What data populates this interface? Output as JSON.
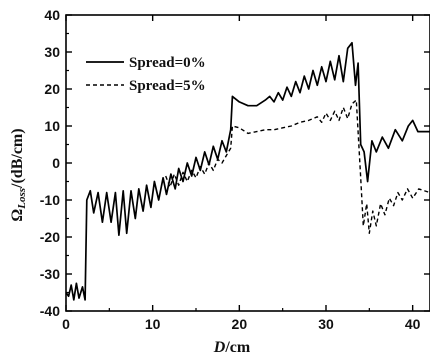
{
  "chart_data": {
    "type": "line",
    "xlabel_main": "D",
    "xlabel_unit": "/cm",
    "ylabel_main": "Ω",
    "ylabel_sub": "Loss",
    "ylabel_unit": "/(dB/cm)",
    "xlim": [
      0,
      42
    ],
    "ylim": [
      -40,
      40
    ],
    "x_ticks": [
      0,
      10,
      20,
      30,
      40
    ],
    "y_ticks": [
      -40,
      -30,
      -20,
      -10,
      0,
      10,
      20,
      30,
      40
    ],
    "grid": false,
    "legend_position": "top-left",
    "series": [
      {
        "name": "Spread=0%",
        "style": "solid",
        "color": "#000000",
        "points": [
          [
            0.0,
            -35
          ],
          [
            0.3,
            -36
          ],
          [
            0.6,
            -33
          ],
          [
            0.9,
            -37
          ],
          [
            1.2,
            -32.5
          ],
          [
            1.5,
            -36.5
          ],
          [
            1.9,
            -33.5
          ],
          [
            2.2,
            -37
          ],
          [
            2.4,
            -10
          ],
          [
            2.8,
            -7.5
          ],
          [
            3.2,
            -13.5
          ],
          [
            3.7,
            -8
          ],
          [
            4.2,
            -16
          ],
          [
            4.7,
            -8
          ],
          [
            5.2,
            -16
          ],
          [
            5.7,
            -8
          ],
          [
            6.1,
            -19.5
          ],
          [
            6.6,
            -7.5
          ],
          [
            7.0,
            -19
          ],
          [
            7.5,
            -7.5
          ],
          [
            8.0,
            -15
          ],
          [
            8.4,
            -7
          ],
          [
            8.9,
            -13
          ],
          [
            9.3,
            -6
          ],
          [
            9.8,
            -12
          ],
          [
            10.2,
            -5
          ],
          [
            10.7,
            -10
          ],
          [
            11.2,
            -4
          ],
          [
            11.6,
            -8.5
          ],
          [
            12.1,
            -3
          ],
          [
            12.6,
            -7
          ],
          [
            13.0,
            -1.5
          ],
          [
            13.5,
            -5
          ],
          [
            14.0,
            0
          ],
          [
            14.5,
            -3.5
          ],
          [
            15.0,
            1.5
          ],
          [
            15.5,
            -2
          ],
          [
            16.0,
            3
          ],
          [
            16.5,
            -0.5
          ],
          [
            17.0,
            4.5
          ],
          [
            17.5,
            1
          ],
          [
            18.0,
            6
          ],
          [
            18.5,
            3
          ],
          [
            19.0,
            9
          ],
          [
            19.2,
            18
          ],
          [
            20.0,
            16.5
          ],
          [
            21.0,
            15.5
          ],
          [
            22.0,
            15.5
          ],
          [
            23.0,
            17
          ],
          [
            23.5,
            18
          ],
          [
            24.0,
            16.5
          ],
          [
            24.5,
            19
          ],
          [
            25.0,
            17
          ],
          [
            25.5,
            20.5
          ],
          [
            26.0,
            18
          ],
          [
            26.5,
            22
          ],
          [
            27.0,
            19
          ],
          [
            27.5,
            23.5
          ],
          [
            28.0,
            20
          ],
          [
            28.5,
            25
          ],
          [
            29.0,
            21
          ],
          [
            29.5,
            26
          ],
          [
            30.0,
            22
          ],
          [
            30.5,
            27.5
          ],
          [
            31.0,
            22.5
          ],
          [
            31.5,
            29
          ],
          [
            32.0,
            22
          ],
          [
            32.5,
            31
          ],
          [
            33.0,
            32.5
          ],
          [
            33.4,
            21
          ],
          [
            33.7,
            27
          ],
          [
            34.0,
            5
          ],
          [
            34.4,
            3
          ],
          [
            34.8,
            -5
          ],
          [
            35.3,
            6
          ],
          [
            35.8,
            3
          ],
          [
            36.5,
            7
          ],
          [
            37.2,
            4
          ],
          [
            38.0,
            9
          ],
          [
            38.8,
            6
          ],
          [
            39.5,
            10
          ],
          [
            40.0,
            11.5
          ],
          [
            40.6,
            8.5
          ],
          [
            42.0,
            8.5
          ]
        ]
      },
      {
        "name": "Spread=5%",
        "style": "dashed",
        "color": "#000000",
        "points": [
          [
            11.5,
            -3.5
          ],
          [
            12.0,
            -6.5
          ],
          [
            12.5,
            -3
          ],
          [
            13.0,
            -6
          ],
          [
            13.5,
            -2.5
          ],
          [
            14.0,
            -5
          ],
          [
            14.5,
            -2
          ],
          [
            15.0,
            -4
          ],
          [
            15.5,
            -1
          ],
          [
            16.0,
            -3
          ],
          [
            16.5,
            0
          ],
          [
            17.0,
            -2
          ],
          [
            17.5,
            1
          ],
          [
            18.0,
            0
          ],
          [
            18.5,
            2
          ],
          [
            19.0,
            4
          ],
          [
            19.2,
            10
          ],
          [
            20.0,
            9.5
          ],
          [
            21.0,
            8
          ],
          [
            22.0,
            8.5
          ],
          [
            23.0,
            9
          ],
          [
            24.0,
            9
          ],
          [
            25.0,
            9.5
          ],
          [
            26.0,
            10
          ],
          [
            27.0,
            11
          ],
          [
            28.0,
            11.5
          ],
          [
            29.0,
            12.5
          ],
          [
            29.5,
            11
          ],
          [
            30.0,
            13.5
          ],
          [
            30.5,
            11.5
          ],
          [
            31.0,
            14
          ],
          [
            31.5,
            11.5
          ],
          [
            32.0,
            15
          ],
          [
            32.5,
            12
          ],
          [
            33.0,
            16
          ],
          [
            33.5,
            17
          ],
          [
            34.0,
            -4
          ],
          [
            34.3,
            -17
          ],
          [
            34.7,
            -11
          ],
          [
            35.0,
            -19
          ],
          [
            35.4,
            -13
          ],
          [
            35.8,
            -17
          ],
          [
            36.3,
            -11
          ],
          [
            36.8,
            -14
          ],
          [
            37.3,
            -9.5
          ],
          [
            37.8,
            -11.5
          ],
          [
            38.3,
            -8
          ],
          [
            38.8,
            -10
          ],
          [
            39.4,
            -7
          ],
          [
            40.0,
            -9.5
          ],
          [
            40.7,
            -7
          ],
          [
            42.0,
            -8
          ]
        ]
      }
    ]
  }
}
